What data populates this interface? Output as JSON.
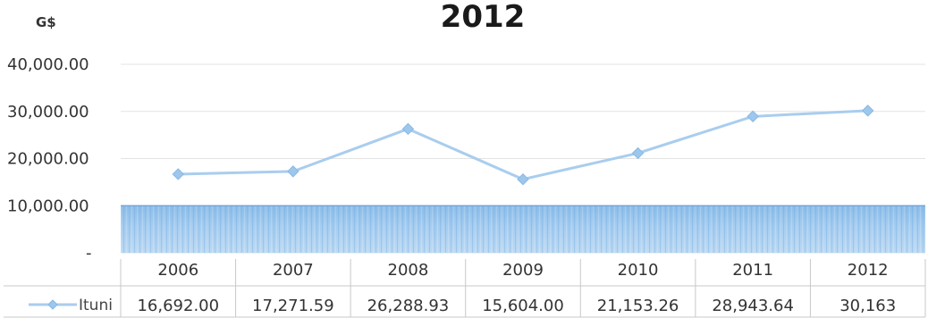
{
  "chart_data": {
    "type": "line",
    "title": "2012",
    "unit_label": "G$",
    "xlabel": "",
    "ylabel": "",
    "categories": [
      "2006",
      "2007",
      "2008",
      "2009",
      "2010",
      "2011",
      "2012"
    ],
    "ylim": [
      0,
      40000
    ],
    "yticks": [
      {
        "value": 40000,
        "label": "40,000.00"
      },
      {
        "value": 30000,
        "label": "30,000.00"
      },
      {
        "value": 20000,
        "label": "20,000.00"
      },
      {
        "value": 10000,
        "label": "10,000.00"
      },
      {
        "value": 0,
        "label": "-"
      }
    ],
    "band": {
      "from": 0,
      "to": 10000
    },
    "grid": true,
    "legend": "bottom-left data table",
    "series": [
      {
        "name": "Ituni",
        "values": [
          16692.0,
          17271.59,
          26288.93,
          15604.0,
          21153.26,
          28943.64,
          30163
        ],
        "value_labels": [
          "16,692.00",
          "17,271.59",
          "26,288.93",
          "15,604.00",
          "21,153.26",
          "28,943.64",
          "30,163"
        ]
      }
    ],
    "colors": {
      "line": "#a9cdee",
      "marker": "#9ec7ec",
      "band": "#7fb5e6",
      "grid": "#e3e3e3",
      "table_border": "#c8c8c8"
    }
  }
}
